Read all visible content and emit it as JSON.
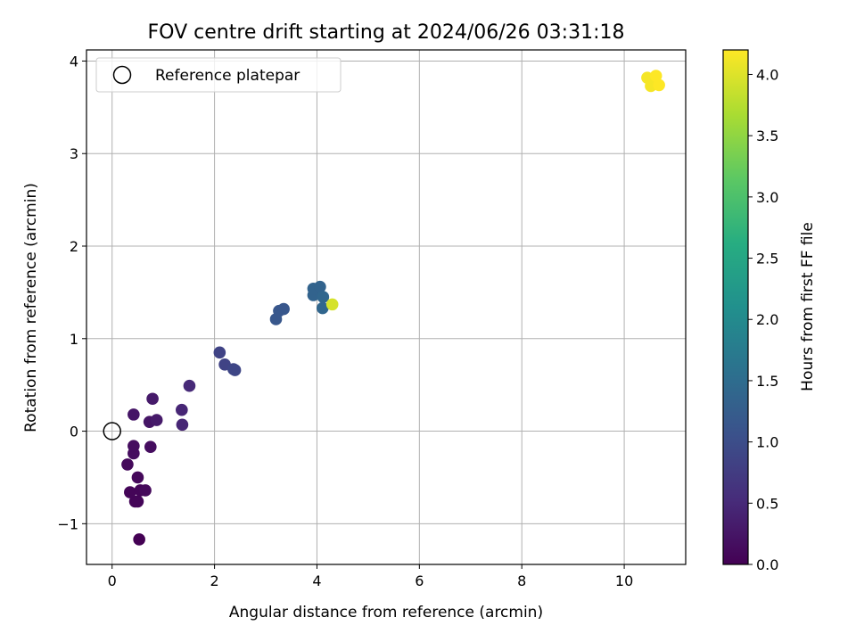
{
  "chart_data": {
    "type": "scatter",
    "title": "FOV centre drift starting at 2024/06/26 03:31:18",
    "xlabel": "Angular distance from reference (arcmin)",
    "ylabel": "Rotation from reference (arcmin)",
    "xlim": [
      -0.5,
      11.2
    ],
    "ylim": [
      -1.44,
      4.12
    ],
    "xticks": [
      0,
      2,
      4,
      6,
      8,
      10
    ],
    "xtick_labels": [
      "0",
      "2",
      "4",
      "6",
      "8",
      "10"
    ],
    "yticks": [
      -1,
      0,
      1,
      2,
      3,
      4
    ],
    "ytick_labels": [
      "−1",
      "0",
      "1",
      "2",
      "3",
      "4"
    ],
    "grid": true,
    "legend": {
      "location": "upper-left",
      "entries": [
        {
          "label": "Reference platepar",
          "marker": "hollow-circle"
        }
      ]
    },
    "reference_point": {
      "x": 0,
      "y": 0
    },
    "colorbar": {
      "label": "Hours from first FF file",
      "colormap": "viridis",
      "range": [
        0.0,
        4.2
      ],
      "ticks": [
        0.0,
        0.5,
        1.0,
        1.5,
        2.0,
        2.5,
        3.0,
        3.5,
        4.0
      ],
      "tick_labels": [
        "0.0",
        "0.5",
        "1.0",
        "1.5",
        "2.0",
        "2.5",
        "3.0",
        "3.5",
        "4.0"
      ]
    },
    "points": [
      {
        "x": 0.53,
        "y": -1.17,
        "h": 0.0
      },
      {
        "x": 0.45,
        "y": -0.76,
        "h": 0.05
      },
      {
        "x": 0.5,
        "y": -0.76,
        "h": 0.05
      },
      {
        "x": 0.35,
        "y": -0.66,
        "h": 0.05
      },
      {
        "x": 0.55,
        "y": -0.64,
        "h": 0.05
      },
      {
        "x": 0.65,
        "y": -0.64,
        "h": 0.1
      },
      {
        "x": 0.5,
        "y": -0.5,
        "h": 0.1
      },
      {
        "x": 0.3,
        "y": -0.36,
        "h": 0.1
      },
      {
        "x": 0.42,
        "y": -0.24,
        "h": 0.15
      },
      {
        "x": 0.42,
        "y": -0.16,
        "h": 0.15
      },
      {
        "x": 0.75,
        "y": -0.17,
        "h": 0.15
      },
      {
        "x": 0.42,
        "y": 0.18,
        "h": 0.25
      },
      {
        "x": 0.73,
        "y": 0.1,
        "h": 0.25
      },
      {
        "x": 0.87,
        "y": 0.12,
        "h": 0.3
      },
      {
        "x": 0.79,
        "y": 0.35,
        "h": 0.3
      },
      {
        "x": 1.37,
        "y": 0.07,
        "h": 0.45
      },
      {
        "x": 1.36,
        "y": 0.23,
        "h": 0.45
      },
      {
        "x": 1.51,
        "y": 0.49,
        "h": 0.5
      },
      {
        "x": 2.1,
        "y": 0.85,
        "h": 0.85
      },
      {
        "x": 2.2,
        "y": 0.72,
        "h": 0.85
      },
      {
        "x": 2.37,
        "y": 0.67,
        "h": 0.9
      },
      {
        "x": 2.4,
        "y": 0.66,
        "h": 0.9
      },
      {
        "x": 3.2,
        "y": 1.21,
        "h": 1.15
      },
      {
        "x": 3.26,
        "y": 1.3,
        "h": 1.15
      },
      {
        "x": 3.35,
        "y": 1.32,
        "h": 1.15
      },
      {
        "x": 3.93,
        "y": 1.47,
        "h": 1.35
      },
      {
        "x": 3.93,
        "y": 1.54,
        "h": 1.35
      },
      {
        "x": 4.06,
        "y": 1.56,
        "h": 1.35
      },
      {
        "x": 4.12,
        "y": 1.45,
        "h": 1.4
      },
      {
        "x": 4.11,
        "y": 1.33,
        "h": 1.4
      },
      {
        "x": 4.3,
        "y": 1.37,
        "h": 3.95
      },
      {
        "x": 10.45,
        "y": 3.82,
        "h": 4.15
      },
      {
        "x": 10.52,
        "y": 3.73,
        "h": 4.15
      },
      {
        "x": 10.62,
        "y": 3.84,
        "h": 4.2
      },
      {
        "x": 10.68,
        "y": 3.74,
        "h": 4.2
      }
    ]
  }
}
